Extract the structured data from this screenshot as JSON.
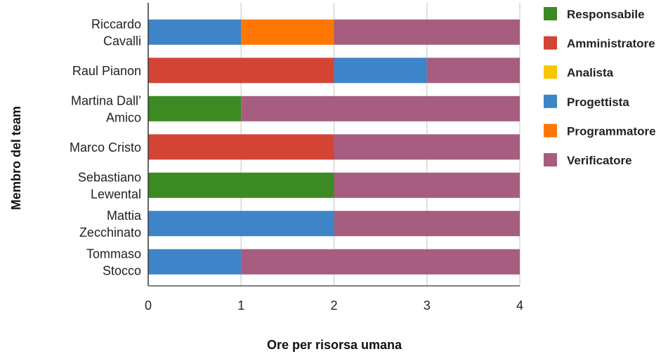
{
  "chart_data": {
    "type": "bar",
    "orientation": "horizontal",
    "stacked": true,
    "title": "",
    "xlabel": "Ore per risorsa umana",
    "ylabel": "Membro del team",
    "xlim": [
      0,
      4
    ],
    "xticks": [
      "0",
      "1",
      "2",
      "3",
      "4"
    ],
    "grid": true,
    "legend_position": "right",
    "categories": [
      [
        "Riccardo",
        "Cavalli"
      ],
      [
        "Raul Pianon"
      ],
      [
        "Martina Dall’",
        "Amico"
      ],
      [
        "Marco Cristo"
      ],
      [
        "Sebastiano",
        "Lewental"
      ],
      [
        "Mattia",
        "Zecchinato"
      ],
      [
        "Tommaso",
        "Stocco"
      ]
    ],
    "series": [
      {
        "name": "Responsabile",
        "color": "#3c8a22",
        "values": [
          0,
          0,
          1,
          0,
          2,
          0,
          0
        ]
      },
      {
        "name": "Amministratore",
        "color": "#d44434",
        "values": [
          0,
          2,
          0,
          2,
          0,
          0,
          0
        ]
      },
      {
        "name": "Analista",
        "color": "#f8c500",
        "values": [
          0,
          0,
          0,
          0,
          0,
          0,
          0
        ]
      },
      {
        "name": "Progettista",
        "color": "#3e84c8",
        "values": [
          1,
          1,
          0,
          0,
          0,
          2,
          1
        ]
      },
      {
        "name": "Programmatore",
        "color": "#ff7700",
        "values": [
          1,
          0,
          0,
          0,
          0,
          0,
          0
        ]
      },
      {
        "name": "Verificatore",
        "color": "#a65d80",
        "values": [
          2,
          1,
          3,
          2,
          2,
          2,
          3
        ]
      }
    ]
  }
}
